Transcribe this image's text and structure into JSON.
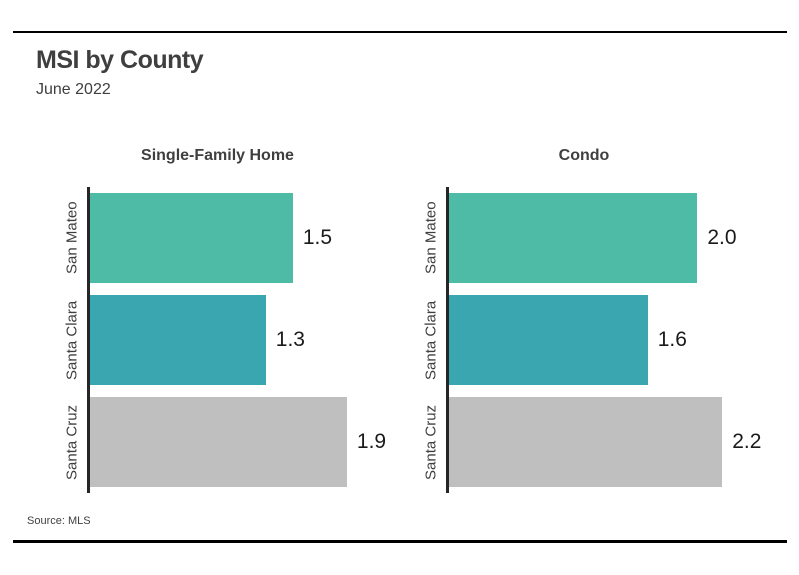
{
  "page": {
    "title": "MSI by County",
    "subtitle": "June 2022",
    "source": "Source:  MLS"
  },
  "colors": {
    "san_mateo_bar": "#4dbba5",
    "santa_clara_bar": "#39a6b0",
    "santa_cruz_bar": "#bfbfbf",
    "text": "#3f3f3f",
    "axis": "#262626",
    "rule": "#000000"
  },
  "chart_data": [
    {
      "type": "bar",
      "orientation": "horizontal",
      "title": "Single-Family Home",
      "categories": [
        "San Mateo",
        "Santa Clara",
        "Santa Cruz"
      ],
      "values": [
        1.5,
        1.3,
        1.9
      ],
      "value_labels": [
        "1.5",
        "1.3",
        "1.9"
      ],
      "xlim": [
        0,
        2.13
      ],
      "bar_colors": [
        "#4dbba5",
        "#39a6b0",
        "#bfbfbf"
      ],
      "grid": false,
      "legend": false,
      "value_label_position": "right-of-bar"
    },
    {
      "type": "bar",
      "orientation": "horizontal",
      "title": "Condo",
      "categories": [
        "San Mateo",
        "Santa Clara",
        "Santa Cruz"
      ],
      "values": [
        2.0,
        1.6,
        2.2
      ],
      "value_labels": [
        "2.0",
        "1.6",
        "2.2"
      ],
      "xlim": [
        0,
        2.44
      ],
      "bar_colors": [
        "#4dbba5",
        "#39a6b0",
        "#bfbfbf"
      ],
      "grid": false,
      "legend": false,
      "value_label_position": "right-of-bar"
    }
  ]
}
